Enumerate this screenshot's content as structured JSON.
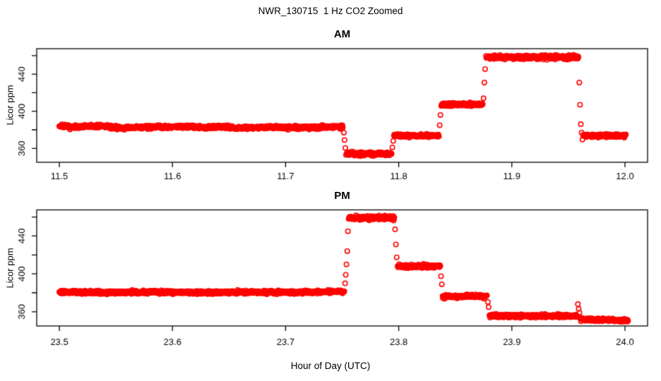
{
  "figure": {
    "title": "NWR_130715  1 Hz CO2 Zoomed",
    "xlabel": "Hour of Day (UTC)",
    "marker_color": "#FF0000",
    "axis_color": "#000000",
    "background_color": "#FFFFFF"
  },
  "chart_data": [
    {
      "type": "scatter",
      "title": "AM",
      "ylabel": "Licor ppm",
      "marker": "open-circle",
      "color": "#FF0000",
      "sample_rate_hz": 1,
      "xlim": [
        11.48,
        12.02
      ],
      "ylim": [
        345,
        467.5
      ],
      "xticks": [
        11.5,
        11.6,
        11.7,
        11.8,
        11.9,
        12.0
      ],
      "xtick_labels": [
        "11.5",
        "11.6",
        "11.7",
        "11.8",
        "11.9",
        "12.0"
      ],
      "yticks": [
        360,
        380,
        400,
        420,
        440,
        460
      ],
      "ytick_labels": [
        "360",
        "",
        "400",
        "",
        "440",
        ""
      ],
      "segments": [
        {
          "t0": 11.5,
          "t1": 11.7508,
          "noise": 0.9,
          "anchors": [
            [
              11.5,
              384.3
            ],
            [
              11.512,
              382.6
            ],
            [
              11.525,
              383.8
            ],
            [
              11.54,
              383.9
            ],
            [
              11.555,
              381.9
            ],
            [
              11.57,
              382.6
            ],
            [
              11.585,
              383.4
            ],
            [
              11.6,
              383.1
            ],
            [
              11.613,
              383.9
            ],
            [
              11.628,
              382.6
            ],
            [
              11.643,
              383.2
            ],
            [
              11.658,
              382.1
            ],
            [
              11.675,
              382.6
            ],
            [
              11.69,
              383.0
            ],
            [
              11.705,
              382.7
            ],
            [
              11.72,
              382.4
            ],
            [
              11.735,
              382.9
            ],
            [
              11.7508,
              383.4
            ]
          ]
        },
        {
          "t0": 11.754,
          "t1": 11.7938,
          "noise": 0.9,
          "level": 354.2
        },
        {
          "t0": 11.7958,
          "t1": 11.8356,
          "noise": 0.8,
          "level": 373.8
        },
        {
          "t0": 11.8376,
          "t1": 11.8744,
          "noise": 0.9,
          "level": 407.3
        },
        {
          "t0": 11.8772,
          "t1": 11.959,
          "noise": 1.1,
          "level": 458.3
        },
        {
          "t0": 11.963,
          "t1": 12.001,
          "noise": 0.9,
          "level": 373.6
        }
      ],
      "transition_points": [
        [
          11.7515,
          377.0
        ],
        [
          11.7521,
          369.0
        ],
        [
          11.7528,
          360.5
        ],
        [
          11.7534,
          353.0
        ],
        [
          11.7944,
          361.0
        ],
        [
          11.7951,
          368.0
        ],
        [
          11.8362,
          385.0
        ],
        [
          11.8369,
          396.0
        ],
        [
          11.875,
          414.0
        ],
        [
          11.8757,
          431.0
        ],
        [
          11.8764,
          445.5
        ],
        [
          11.9596,
          431.0
        ],
        [
          11.9603,
          407.0
        ],
        [
          11.961,
          386.0
        ],
        [
          11.9617,
          377.0
        ],
        [
          11.9624,
          369.5
        ]
      ]
    },
    {
      "type": "scatter",
      "title": "PM",
      "ylabel": "Licor ppm",
      "marker": "open-circle",
      "color": "#FF0000",
      "sample_rate_hz": 1,
      "xlim": [
        23.48,
        24.02
      ],
      "ylim": [
        345,
        467.5
      ],
      "xticks": [
        23.5,
        23.6,
        23.7,
        23.8,
        23.9,
        24.0
      ],
      "xtick_labels": [
        "23.5",
        "23.6",
        "23.7",
        "23.8",
        "23.9",
        "24.0"
      ],
      "yticks": [
        360,
        380,
        400,
        420,
        440,
        460
      ],
      "ytick_labels": [
        "360",
        "",
        "400",
        "",
        "440",
        ""
      ],
      "segments": [
        {
          "t0": 23.5,
          "t1": 23.752,
          "noise": 0.8,
          "anchors": [
            [
              23.5,
              380.8
            ],
            [
              23.54,
              380.4
            ],
            [
              23.58,
              380.9
            ],
            [
              23.62,
              380.3
            ],
            [
              23.66,
              380.7
            ],
            [
              23.7,
              380.5
            ],
            [
              23.73,
              381.0
            ],
            [
              23.752,
              381.3
            ]
          ]
        },
        {
          "t0": 23.7558,
          "t1": 23.7962,
          "noise": 1.0,
          "level": 459.2
        },
        {
          "t0": 23.799,
          "t1": 23.8368,
          "noise": 0.9,
          "level": 408.0
        },
        {
          "t0": 23.8388,
          "t1": 23.8782,
          "noise": 0.8,
          "level": 376.2
        },
        {
          "t0": 23.8802,
          "t1": 23.9578,
          "noise": 0.8,
          "level": 355.6
        },
        {
          "t0": 23.9605,
          "t1": 24.003,
          "noise": 0.8,
          "anchors": [
            [
              23.9605,
              352.2
            ],
            [
              23.98,
              351.4
            ],
            [
              24.003,
              350.4
            ]
          ]
        }
      ],
      "transition_points": [
        [
          23.7526,
          390.0
        ],
        [
          23.7532,
          399.0
        ],
        [
          23.7538,
          410.0
        ],
        [
          23.7545,
          424.0
        ],
        [
          23.7551,
          445.0
        ],
        [
          23.7968,
          447.0
        ],
        [
          23.7975,
          431.0
        ],
        [
          23.7982,
          417.5
        ],
        [
          23.8374,
          397.5
        ],
        [
          23.8381,
          389.0
        ],
        [
          23.8788,
          370.4
        ],
        [
          23.8795,
          365.0
        ],
        [
          23.9584,
          368.0
        ],
        [
          23.9591,
          363.0
        ],
        [
          23.9598,
          359.0
        ]
      ]
    }
  ]
}
